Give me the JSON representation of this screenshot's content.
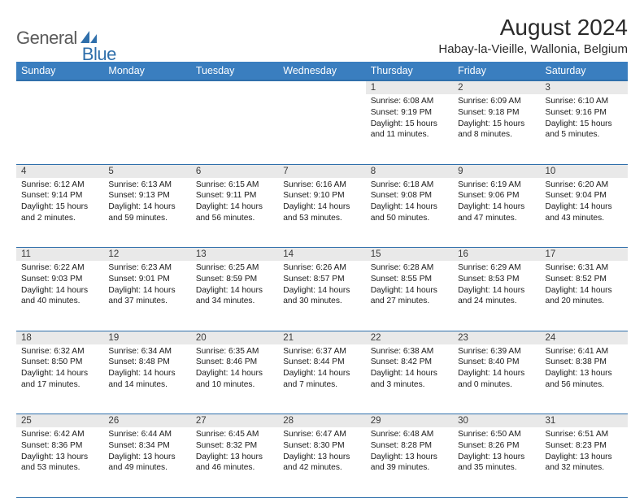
{
  "logo": {
    "part1": "General",
    "part2": "Blue"
  },
  "title": "August 2024",
  "location": "Habay-la-Vieille, Wallonia, Belgium",
  "colors": {
    "header_bg": "#3a7ebf",
    "header_border": "#2f6fab",
    "daynum_bg": "#e9e9e9",
    "text": "#1a1a1a",
    "logo_gray": "#5a5a5a",
    "logo_blue": "#2f6fab",
    "page_bg": "#ffffff"
  },
  "day_headers": [
    "Sunday",
    "Monday",
    "Tuesday",
    "Wednesday",
    "Thursday",
    "Friday",
    "Saturday"
  ],
  "weeks": [
    [
      null,
      null,
      null,
      null,
      {
        "n": "1",
        "sr": "6:08 AM",
        "ss": "9:19 PM",
        "dl": "15 hours and 11 minutes."
      },
      {
        "n": "2",
        "sr": "6:09 AM",
        "ss": "9:18 PM",
        "dl": "15 hours and 8 minutes."
      },
      {
        "n": "3",
        "sr": "6:10 AM",
        "ss": "9:16 PM",
        "dl": "15 hours and 5 minutes."
      }
    ],
    [
      {
        "n": "4",
        "sr": "6:12 AM",
        "ss": "9:14 PM",
        "dl": "15 hours and 2 minutes."
      },
      {
        "n": "5",
        "sr": "6:13 AM",
        "ss": "9:13 PM",
        "dl": "14 hours and 59 minutes."
      },
      {
        "n": "6",
        "sr": "6:15 AM",
        "ss": "9:11 PM",
        "dl": "14 hours and 56 minutes."
      },
      {
        "n": "7",
        "sr": "6:16 AM",
        "ss": "9:10 PM",
        "dl": "14 hours and 53 minutes."
      },
      {
        "n": "8",
        "sr": "6:18 AM",
        "ss": "9:08 PM",
        "dl": "14 hours and 50 minutes."
      },
      {
        "n": "9",
        "sr": "6:19 AM",
        "ss": "9:06 PM",
        "dl": "14 hours and 47 minutes."
      },
      {
        "n": "10",
        "sr": "6:20 AM",
        "ss": "9:04 PM",
        "dl": "14 hours and 43 minutes."
      }
    ],
    [
      {
        "n": "11",
        "sr": "6:22 AM",
        "ss": "9:03 PM",
        "dl": "14 hours and 40 minutes."
      },
      {
        "n": "12",
        "sr": "6:23 AM",
        "ss": "9:01 PM",
        "dl": "14 hours and 37 minutes."
      },
      {
        "n": "13",
        "sr": "6:25 AM",
        "ss": "8:59 PM",
        "dl": "14 hours and 34 minutes."
      },
      {
        "n": "14",
        "sr": "6:26 AM",
        "ss": "8:57 PM",
        "dl": "14 hours and 30 minutes."
      },
      {
        "n": "15",
        "sr": "6:28 AM",
        "ss": "8:55 PM",
        "dl": "14 hours and 27 minutes."
      },
      {
        "n": "16",
        "sr": "6:29 AM",
        "ss": "8:53 PM",
        "dl": "14 hours and 24 minutes."
      },
      {
        "n": "17",
        "sr": "6:31 AM",
        "ss": "8:52 PM",
        "dl": "14 hours and 20 minutes."
      }
    ],
    [
      {
        "n": "18",
        "sr": "6:32 AM",
        "ss": "8:50 PM",
        "dl": "14 hours and 17 minutes."
      },
      {
        "n": "19",
        "sr": "6:34 AM",
        "ss": "8:48 PM",
        "dl": "14 hours and 14 minutes."
      },
      {
        "n": "20",
        "sr": "6:35 AM",
        "ss": "8:46 PM",
        "dl": "14 hours and 10 minutes."
      },
      {
        "n": "21",
        "sr": "6:37 AM",
        "ss": "8:44 PM",
        "dl": "14 hours and 7 minutes."
      },
      {
        "n": "22",
        "sr": "6:38 AM",
        "ss": "8:42 PM",
        "dl": "14 hours and 3 minutes."
      },
      {
        "n": "23",
        "sr": "6:39 AM",
        "ss": "8:40 PM",
        "dl": "14 hours and 0 minutes."
      },
      {
        "n": "24",
        "sr": "6:41 AM",
        "ss": "8:38 PM",
        "dl": "13 hours and 56 minutes."
      }
    ],
    [
      {
        "n": "25",
        "sr": "6:42 AM",
        "ss": "8:36 PM",
        "dl": "13 hours and 53 minutes."
      },
      {
        "n": "26",
        "sr": "6:44 AM",
        "ss": "8:34 PM",
        "dl": "13 hours and 49 minutes."
      },
      {
        "n": "27",
        "sr": "6:45 AM",
        "ss": "8:32 PM",
        "dl": "13 hours and 46 minutes."
      },
      {
        "n": "28",
        "sr": "6:47 AM",
        "ss": "8:30 PM",
        "dl": "13 hours and 42 minutes."
      },
      {
        "n": "29",
        "sr": "6:48 AM",
        "ss": "8:28 PM",
        "dl": "13 hours and 39 minutes."
      },
      {
        "n": "30",
        "sr": "6:50 AM",
        "ss": "8:26 PM",
        "dl": "13 hours and 35 minutes."
      },
      {
        "n": "31",
        "sr": "6:51 AM",
        "ss": "8:23 PM",
        "dl": "13 hours and 32 minutes."
      }
    ]
  ],
  "labels": {
    "sunrise": "Sunrise:",
    "sunset": "Sunset:",
    "daylight": "Daylight:"
  }
}
